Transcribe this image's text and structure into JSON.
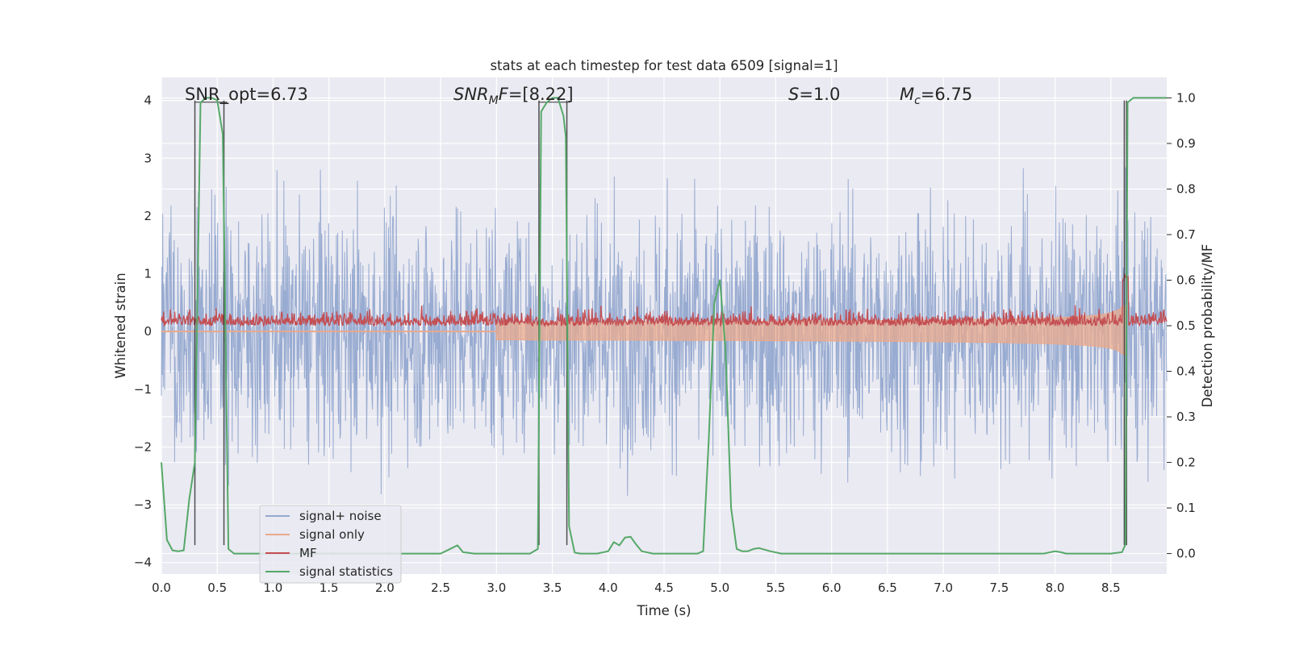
{
  "chart_data": {
    "type": "line",
    "title": "stats at each timestep for test data 6509 [signal=1]",
    "xlabel": "Time (s)",
    "ylabel_left": "Whitened strain",
    "ylabel_right": "Detection probability/MF",
    "xlim": [
      0.0,
      9.0
    ],
    "ylim_left": [
      -4.2,
      4.4
    ],
    "ylim_right": [
      -0.045,
      1.045
    ],
    "x_ticks": [
      "0.0",
      "0.5",
      "1.0",
      "1.5",
      "2.0",
      "2.5",
      "3.0",
      "3.5",
      "4.0",
      "4.5",
      "5.0",
      "5.5",
      "6.0",
      "6.5",
      "7.0",
      "7.5",
      "8.0",
      "8.5"
    ],
    "y_ticks_left": [
      "4",
      "3",
      "2",
      "1",
      "0",
      "−1",
      "−2",
      "−3",
      "−4"
    ],
    "y_ticks_right": [
      "1.0",
      "0.9",
      "0.8",
      "0.7",
      "0.6",
      "0.5",
      "0.4",
      "0.3",
      "0.2",
      "0.1",
      "0.0"
    ],
    "grid": true,
    "legend_position": "lower-left",
    "annotations": {
      "snr_opt": "SNR_opt=6.73",
      "snr_mf_name": "SNR",
      "snr_mf_sub": "M",
      "snr_mf_rest": "F",
      "snr_mf_value": "=[8.22]",
      "s_name": "S",
      "s_value": "=1.0",
      "mc_name": "M",
      "mc_sub": "c",
      "mc_value": "=6.75"
    },
    "detection_windows": [
      [
        0.3,
        0.56
      ],
      [
        3.38,
        3.63
      ],
      [
        8.62,
        8.64
      ]
    ],
    "series": [
      {
        "name": "signal+ noise",
        "color": "#94a8cf",
        "axis": "left",
        "noise_amplitude": 1.9
      },
      {
        "name": "signal only",
        "color": "#e9a98c",
        "axis": "left",
        "chirp_end_amplitude": 0.9
      },
      {
        "name": "MF",
        "color": "#c44e52",
        "axis": "right"
      },
      {
        "name": "signal statistics",
        "color": "#55a868",
        "axis": "right",
        "x": [
          0.0,
          0.05,
          0.1,
          0.15,
          0.2,
          0.25,
          0.3,
          0.35,
          0.4,
          0.45,
          0.5,
          0.55,
          0.6,
          0.65,
          0.7,
          1.0,
          1.5,
          2.0,
          2.4,
          2.5,
          2.6,
          2.65,
          2.7,
          2.8,
          3.0,
          3.3,
          3.37,
          3.4,
          3.45,
          3.5,
          3.55,
          3.6,
          3.62,
          3.65,
          3.7,
          3.75,
          3.9,
          4.0,
          4.05,
          4.1,
          4.15,
          4.2,
          4.25,
          4.3,
          4.4,
          4.6,
          4.8,
          4.85,
          4.9,
          4.95,
          5.0,
          5.05,
          5.1,
          5.15,
          5.2,
          5.25,
          5.3,
          5.35,
          5.45,
          5.55,
          5.6,
          5.8,
          6.0,
          7.0,
          7.9,
          8.0,
          8.05,
          8.1,
          8.2,
          8.3,
          8.5,
          8.6,
          8.63,
          8.65,
          8.7,
          8.75,
          8.8,
          9.0
        ],
        "values": [
          0.2,
          0.03,
          0.007,
          0.005,
          0.007,
          0.12,
          0.2,
          0.99,
          1.0,
          1.0,
          0.995,
          0.92,
          0.01,
          0.0,
          0.0,
          0.0,
          0.0,
          0.0,
          0.0,
          0.0,
          0.012,
          0.018,
          0.003,
          0.0,
          0.0,
          0.0,
          0.01,
          0.97,
          0.99,
          1.0,
          1.0,
          0.96,
          0.915,
          0.06,
          0.002,
          0.0,
          0.0,
          0.005,
          0.025,
          0.018,
          0.035,
          0.037,
          0.02,
          0.005,
          0.0,
          0.0,
          0.0,
          0.005,
          0.25,
          0.55,
          0.6,
          0.45,
          0.1,
          0.01,
          0.005,
          0.005,
          0.01,
          0.012,
          0.005,
          0.0,
          0.0,
          0.0,
          0.0,
          0.0,
          0.0,
          0.005,
          0.003,
          0.0,
          0.0,
          0.0,
          0.0,
          0.003,
          0.02,
          0.99,
          1.0,
          1.0,
          1.0,
          1.0
        ]
      }
    ]
  }
}
